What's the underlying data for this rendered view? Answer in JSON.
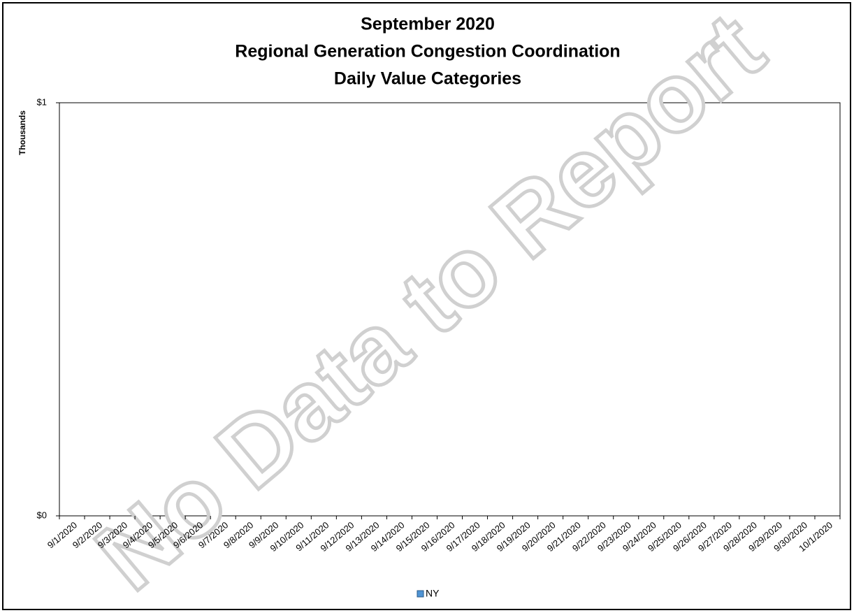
{
  "chart_data": {
    "type": "bar",
    "title": [
      "September 2020",
      "Regional Generation Congestion Coordination",
      "Daily Value Categories"
    ],
    "y_label": "Thousands",
    "annotation": "No Data to Report",
    "categories": [
      "9/1/2020",
      "9/2/2020",
      "9/3/2020",
      "9/4/2020",
      "9/5/2020",
      "9/6/2020",
      "9/7/2020",
      "9/8/2020",
      "9/9/2020",
      "9/10/2020",
      "9/11/2020",
      "9/12/2020",
      "9/13/2020",
      "9/14/2020",
      "9/15/2020",
      "9/16/2020",
      "9/17/2020",
      "9/18/2020",
      "9/19/2020",
      "9/20/2020",
      "9/21/2020",
      "9/22/2020",
      "9/23/2020",
      "9/24/2020",
      "9/25/2020",
      "9/26/2020",
      "9/27/2020",
      "9/28/2020",
      "9/29/2020",
      "9/30/2020",
      "10/1/2020"
    ],
    "series": [
      {
        "name": "NY",
        "color": "#4f94d4",
        "values": [
          null,
          null,
          null,
          null,
          null,
          null,
          null,
          null,
          null,
          null,
          null,
          null,
          null,
          null,
          null,
          null,
          null,
          null,
          null,
          null,
          null,
          null,
          null,
          null,
          null,
          null,
          null,
          null,
          null,
          null,
          null
        ]
      }
    ],
    "ylim": [
      0,
      1
    ],
    "yticks": [
      {
        "value": 0,
        "label": "$0"
      },
      {
        "value": 1,
        "label": "$1"
      }
    ],
    "legend": "bottom"
  }
}
